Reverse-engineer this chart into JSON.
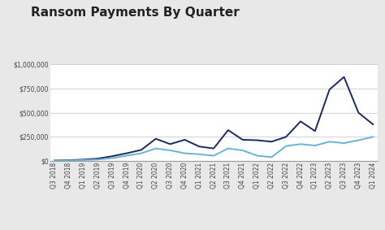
{
  "title": "Ransom Payments By Quarter",
  "labels": [
    "Q3 2018",
    "Q4 2018",
    "Q1 2019",
    "Q2 2019",
    "Q3 2019",
    "Q4 2019",
    "Q1 2020",
    "Q2 2020",
    "Q3 2020",
    "Q4 2020",
    "Q1 2021",
    "Q2 2021",
    "Q3 2021",
    "Q4 2021",
    "Q1 2022",
    "Q2 2022",
    "Q3 2022",
    "Q4 2022",
    "Q1 2023",
    "Q2 2023",
    "Q3 2023",
    "Q4 2023",
    "Q1 2024"
  ],
  "average": [
    5000,
    8000,
    15000,
    25000,
    50000,
    80000,
    115000,
    230000,
    175000,
    220000,
    150000,
    130000,
    320000,
    220000,
    215000,
    200000,
    250000,
    410000,
    310000,
    740000,
    870000,
    500000,
    380000
  ],
  "median": [
    3000,
    5000,
    10000,
    15000,
    30000,
    55000,
    80000,
    130000,
    110000,
    80000,
    70000,
    55000,
    130000,
    110000,
    55000,
    40000,
    155000,
    175000,
    160000,
    200000,
    185000,
    215000,
    250000
  ],
  "avg_color": "#1a2a5e",
  "med_color": "#6bb3d4",
  "bg_color": "#e8e8e8",
  "plot_bg_color": "#ffffff",
  "ylim": [
    0,
    1000000
  ],
  "yticks": [
    0,
    250000,
    500000,
    750000,
    1000000
  ],
  "ytick_labels": [
    "$0",
    "$250,000",
    "$500,000",
    "$750,000",
    "$1,000,000"
  ],
  "title_fontsize": 11,
  "legend_fontsize": 6.5,
  "tick_fontsize": 5.5
}
